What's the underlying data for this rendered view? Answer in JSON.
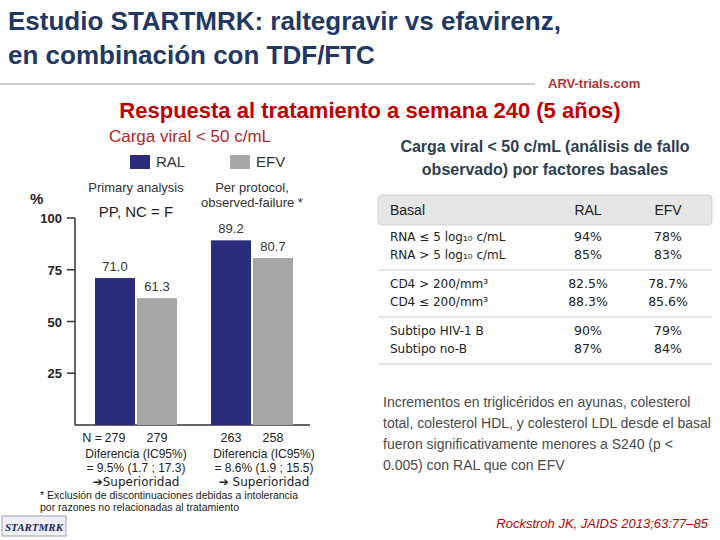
{
  "slide": {
    "title": [
      "Estudio STARTMRK: raltegravir vs efavirenz,",
      "en combinación con TDF/FTC"
    ],
    "subtitle": "Respuesta al tratamiento a semana 240 (5 años)",
    "logo": "ARV-trials.com",
    "study_logo": "STARTMRK",
    "note": "Incrementos en triglicéridos en ayunas, colesterol total, colesterol HDL, y colesterol LDL desde el basal fueron significativamente menores a S240 (p < 0.005) con RAL que con EFV",
    "citation": "Rockstroh JK, JAIDS 2013;63:77–85"
  },
  "chart_data": {
    "type": "bar",
    "title": "Carga viral < 50 c/mL",
    "ylabel": "%",
    "categories": [
      "Primary analysis",
      "Per protocol, observed-failure *"
    ],
    "annotations": [
      {
        "category": "Primary analysis",
        "text": "PP, NC = F"
      }
    ],
    "series": [
      {
        "name": "RAL",
        "color": "#2b2d7c",
        "values": [
          71.0,
          89.2
        ],
        "value_labels": [
          "71.0",
          "89.2"
        ],
        "n": [
          279,
          263
        ]
      },
      {
        "name": "EFV",
        "color": "#a6a6a6",
        "values": [
          61.3,
          80.7
        ],
        "value_labels": [
          "61.3",
          "80.7"
        ],
        "n": [
          279,
          258
        ]
      }
    ],
    "n_label": "N =",
    "differences": [
      {
        "label": "Diferencia (IC95%)",
        "value": "= 9.5% (1.7 ; 17.3)",
        "conclusion": "➔Superioridad"
      },
      {
        "label": "Diferencia (IC95%)",
        "value": "= 8.6% (1.9 ; 15.5)",
        "conclusion": "➔ Superioridad"
      }
    ],
    "footnote": [
      "* Exclusión de discontinuaciones debidas a intolerancia",
      "por razones no relacionadas al tratamiento"
    ],
    "ylim": [
      0,
      100
    ],
    "yticks": [
      25,
      50,
      75,
      100
    ],
    "grid": false,
    "legend": "top",
    "data_labels": true
  },
  "table": {
    "title": [
      "Carga viral < 50 c/mL (análisis de fallo",
      "observado) por factores basales"
    ],
    "header": [
      "Basal",
      "RAL",
      "EFV"
    ],
    "rows": [
      [
        "RNA ≤ 5 log₁₀ c/mL",
        "94%",
        "78%"
      ],
      [
        "RNA > 5 log₁₀ c/mL",
        "85%",
        "83%"
      ],
      [
        "CD4 > 200/mm³",
        "82.5%",
        "78.7%"
      ],
      [
        "CD4 ≤ 200/mm³",
        "88.3%",
        "85.6%"
      ],
      [
        "Subtipo HIV-1 B",
        "90%",
        "79%"
      ],
      [
        "Subtipo no-B",
        "87%",
        "84%"
      ]
    ]
  }
}
